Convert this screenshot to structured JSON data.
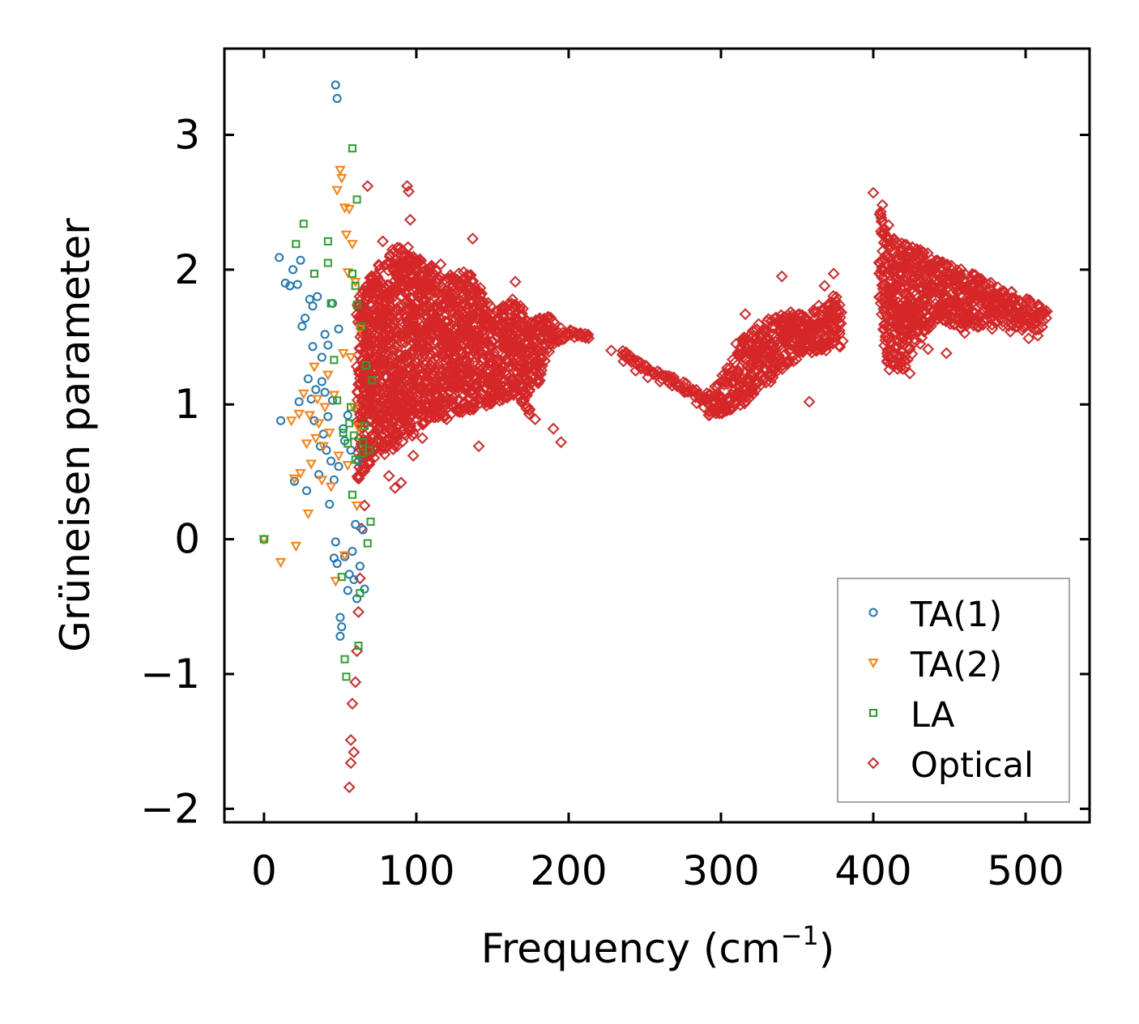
{
  "chart_data": {
    "type": "scatter",
    "xlabel": "Frequency (cm",
    "xlabel_sup": "−1",
    "xlabel_close": ")",
    "ylabel": "Grüneisen parameter",
    "xlim": [
      -26,
      542
    ],
    "ylim": [
      -2.1,
      3.64
    ],
    "xticks": [
      0,
      100,
      200,
      300,
      400,
      500
    ],
    "yticks": [
      -2,
      -1,
      0,
      1,
      2,
      3
    ],
    "xtick_labels": [
      "0",
      "100",
      "200",
      "300",
      "400",
      "500"
    ],
    "ytick_labels": [
      "−2",
      "−1",
      "0",
      "1",
      "2",
      "3"
    ],
    "legend_position": "lower-right",
    "series": [
      {
        "name": "TA(1)",
        "marker": "circle",
        "color": "#1f77b4",
        "points": [
          [
            0,
            0
          ],
          [
            10,
            2.09
          ],
          [
            11,
            0.88
          ],
          [
            14,
            1.9
          ],
          [
            17,
            1.88
          ],
          [
            19,
            2.0
          ],
          [
            20,
            0.43
          ],
          [
            22,
            1.89
          ],
          [
            23,
            1.02
          ],
          [
            24,
            2.07
          ],
          [
            25,
            1.58
          ],
          [
            27,
            1.64
          ],
          [
            28,
            0.36
          ],
          [
            29,
            1.19
          ],
          [
            30,
            1.78
          ],
          [
            31,
            1.04
          ],
          [
            32,
            1.43
          ],
          [
            32,
            1.73
          ],
          [
            33,
            0.88
          ],
          [
            34,
            1.11
          ],
          [
            35,
            1.8
          ],
          [
            36,
            0.48
          ],
          [
            37,
            0.69
          ],
          [
            38,
            1.35
          ],
          [
            38,
            1.17
          ],
          [
            39,
            0.78
          ],
          [
            40,
            1.52
          ],
          [
            40,
            1.09
          ],
          [
            41,
            0.66
          ],
          [
            42,
            1.44
          ],
          [
            42,
            0.91
          ],
          [
            43,
            0.26
          ],
          [
            44,
            0.58
          ],
          [
            45,
            1.75
          ],
          [
            45,
            1.03
          ],
          [
            46,
            -0.14
          ],
          [
            46,
            0.44
          ],
          [
            47,
            3.37
          ],
          [
            47,
            -0.02
          ],
          [
            48,
            3.27
          ],
          [
            48,
            -0.18
          ],
          [
            49,
            1.56
          ],
          [
            49,
            0.54
          ],
          [
            50,
            -0.58
          ],
          [
            50,
            -0.72
          ],
          [
            51,
            -0.65
          ],
          [
            52,
            0.82
          ],
          [
            53,
            0.73
          ],
          [
            53,
            -0.13
          ],
          [
            55,
            0.92
          ],
          [
            55,
            -0.38
          ],
          [
            56,
            -0.26
          ],
          [
            57,
            0.66
          ],
          [
            58,
            -0.09
          ],
          [
            59,
            -0.3
          ],
          [
            60,
            0.11
          ],
          [
            61,
            -0.44
          ],
          [
            62,
            0.58
          ],
          [
            63,
            -0.2
          ],
          [
            65,
            0.07
          ],
          [
            66,
            -0.37
          ]
        ]
      },
      {
        "name": "TA(2)",
        "marker": "triangle-down",
        "color": "#ff7f0e",
        "points": [
          [
            0,
            0
          ],
          [
            11,
            -0.17
          ],
          [
            18,
            0.88
          ],
          [
            20,
            0.45
          ],
          [
            21,
            -0.05
          ],
          [
            23,
            0.93
          ],
          [
            24,
            0.49
          ],
          [
            26,
            1.08
          ],
          [
            28,
            0.71
          ],
          [
            29,
            0.19
          ],
          [
            30,
            0.92
          ],
          [
            31,
            0.56
          ],
          [
            33,
            1.28
          ],
          [
            34,
            0.75
          ],
          [
            35,
            1.04
          ],
          [
            36,
            0.86
          ],
          [
            38,
            0.44
          ],
          [
            39,
            0.69
          ],
          [
            40,
            0.98
          ],
          [
            42,
            1.22
          ],
          [
            43,
            0.79
          ],
          [
            44,
            0.39
          ],
          [
            46,
            1.07
          ],
          [
            47,
            -0.31
          ],
          [
            48,
            2.59
          ],
          [
            49,
            0.62
          ],
          [
            50,
            2.74
          ],
          [
            51,
            2.68
          ],
          [
            52,
            1.38
          ],
          [
            53,
            2.46
          ],
          [
            53,
            -0.12
          ],
          [
            54,
            2.26
          ],
          [
            55,
            0.55
          ],
          [
            55,
            1.98
          ],
          [
            56,
            2.45
          ],
          [
            57,
            1.35
          ],
          [
            58,
            2.19
          ],
          [
            59,
            0.98
          ],
          [
            60,
            1.91
          ],
          [
            61,
            0.25
          ],
          [
            62,
            0.83
          ],
          [
            63,
            1.56
          ]
        ]
      },
      {
        "name": "LA",
        "marker": "square",
        "color": "#2ca02c",
        "points": [
          [
            0,
            0
          ],
          [
            21,
            2.19
          ],
          [
            26,
            2.34
          ],
          [
            33,
            1.97
          ],
          [
            42,
            2.21
          ],
          [
            42,
            2.05
          ],
          [
            44,
            1.75
          ],
          [
            46,
            1.33
          ],
          [
            48,
            1.03
          ],
          [
            51,
            -0.28
          ],
          [
            52,
            0.79
          ],
          [
            53,
            -0.89
          ],
          [
            54,
            -1.02
          ],
          [
            55,
            0.71
          ],
          [
            56,
            0.86
          ],
          [
            57,
            0.98
          ],
          [
            58,
            2.9
          ],
          [
            58,
            0.33
          ],
          [
            59,
            0.77
          ],
          [
            60,
            1.88
          ],
          [
            60,
            0.59
          ],
          [
            61,
            2.52
          ],
          [
            62,
            -0.79
          ],
          [
            63,
            -0.4
          ],
          [
            64,
            1.58
          ],
          [
            65,
            0.64
          ],
          [
            66,
            0.84
          ],
          [
            67,
            1.29
          ],
          [
            68,
            -0.03
          ],
          [
            69,
            0.66
          ],
          [
            70,
            0.13
          ],
          [
            71,
            1.18
          ],
          [
            58,
            1.97
          ],
          [
            61,
            1.74
          ],
          [
            65,
            0.72
          ]
        ]
      },
      {
        "name": "Optical",
        "marker": "diamond",
        "color": "#d62728",
        "points": [
          [
            56,
            -1.84
          ],
          [
            57,
            -1.49
          ],
          [
            57,
            -1.66
          ],
          [
            58,
            -1.22
          ],
          [
            59,
            -1.58
          ],
          [
            60,
            -1.06
          ],
          [
            61,
            -0.83
          ],
          [
            62,
            -0.54
          ],
          [
            63,
            -0.29
          ],
          [
            64,
            0.08
          ],
          [
            66,
            0.25
          ],
          [
            68,
            2.62
          ],
          [
            72,
            0.92
          ],
          [
            78,
            2.21
          ],
          [
            82,
            0.47
          ],
          [
            86,
            0.38
          ],
          [
            90,
            0.42
          ],
          [
            94,
            2.62
          ],
          [
            95,
            2.58
          ],
          [
            96,
            2.37
          ],
          [
            98,
            0.62
          ],
          [
            104,
            0.75
          ],
          [
            110,
            2.03
          ],
          [
            116,
            2.04
          ],
          [
            120,
            0.89
          ],
          [
            127,
            0.95
          ],
          [
            133,
            0.99
          ],
          [
            137,
            2.23
          ],
          [
            141,
            0.69
          ],
          [
            146,
            0.99
          ],
          [
            151,
            1.58
          ],
          [
            157,
            1.73
          ],
          [
            162,
            1.37
          ],
          [
            165,
            1.91
          ],
          [
            170,
            1.71
          ],
          [
            174,
            0.93
          ],
          [
            178,
            0.89
          ],
          [
            182,
            1.57
          ],
          [
            186,
            1.64
          ],
          [
            190,
            0.82
          ],
          [
            195,
            0.72
          ],
          [
            200,
            1.53
          ],
          [
            206,
            1.51
          ],
          [
            212,
            1.5
          ],
          [
            228,
            1.4
          ],
          [
            236,
            1.32
          ],
          [
            244,
            1.25
          ],
          [
            252,
            1.2
          ],
          [
            260,
            1.17
          ],
          [
            268,
            1.14
          ],
          [
            276,
            1.09
          ],
          [
            284,
            1.01
          ],
          [
            292,
            0.92
          ],
          [
            298,
            1.15
          ],
          [
            304,
            1.27
          ],
          [
            310,
            1.45
          ],
          [
            316,
            1.67
          ],
          [
            322,
            1.38
          ],
          [
            328,
            1.43
          ],
          [
            334,
            1.52
          ],
          [
            340,
            1.95
          ],
          [
            346,
            1.63
          ],
          [
            352,
            1.52
          ],
          [
            358,
            1.02
          ],
          [
            362,
            1.59
          ],
          [
            368,
            1.88
          ],
          [
            374,
            1.97
          ],
          [
            380,
            1.47
          ],
          [
            400,
            2.57
          ],
          [
            406,
            2.48
          ],
          [
            410,
            2.33
          ],
          [
            416,
            1.67
          ],
          [
            424,
            1.23
          ],
          [
            430,
            2.08
          ],
          [
            436,
            1.41
          ],
          [
            442,
            1.67
          ],
          [
            448,
            1.38
          ],
          [
            454,
            1.78
          ],
          [
            460,
            1.53
          ],
          [
            466,
            1.84
          ],
          [
            472,
            1.59
          ],
          [
            478,
            1.56
          ],
          [
            484,
            1.63
          ],
          [
            490,
            1.54
          ],
          [
            496,
            1.77
          ],
          [
            502,
            1.49
          ],
          [
            508,
            1.51
          ],
          [
            514,
            1.69
          ]
        ],
        "band": {
          "x": [
            62,
            75,
            90,
            105,
            120,
            135,
            150,
            165,
            175,
            185,
            195,
            205,
            215,
            225,
            235,
            245,
            255,
            265,
            275,
            285,
            295,
            305,
            315,
            325,
            335,
            345,
            355,
            365,
            375,
            380,
            395,
            405,
            410,
            420,
            430,
            440,
            450,
            460,
            470,
            480,
            490,
            500,
            510,
            515
          ],
          "upper": [
            1.8,
            2.05,
            2.2,
            2.05,
            1.95,
            2.0,
            1.7,
            1.8,
            1.6,
            1.68,
            1.57,
            1.54,
            1.53,
            null,
            1.4,
            1.33,
            1.27,
            1.22,
            1.17,
            1.1,
            1.1,
            1.3,
            1.5,
            1.6,
            1.65,
            1.7,
            1.68,
            1.75,
            1.85,
            1.6,
            null,
            2.45,
            2.25,
            2.2,
            2.15,
            2.1,
            2.05,
            2.0,
            1.95,
            1.9,
            1.85,
            1.8,
            1.75,
            1.72
          ],
          "lower": [
            0.45,
            0.6,
            0.7,
            0.85,
            0.9,
            0.95,
            1.0,
            1.05,
            0.95,
            1.35,
            1.47,
            1.49,
            1.49,
            null,
            1.35,
            1.28,
            1.21,
            1.16,
            1.1,
            1.02,
            0.9,
            0.95,
            1.0,
            1.1,
            1.2,
            1.3,
            1.35,
            1.4,
            1.4,
            1.42,
            null,
            1.7,
            1.25,
            1.25,
            1.45,
            1.6,
            1.6,
            1.55,
            1.55,
            1.6,
            1.55,
            1.55,
            1.55,
            1.6
          ]
        }
      }
    ]
  }
}
